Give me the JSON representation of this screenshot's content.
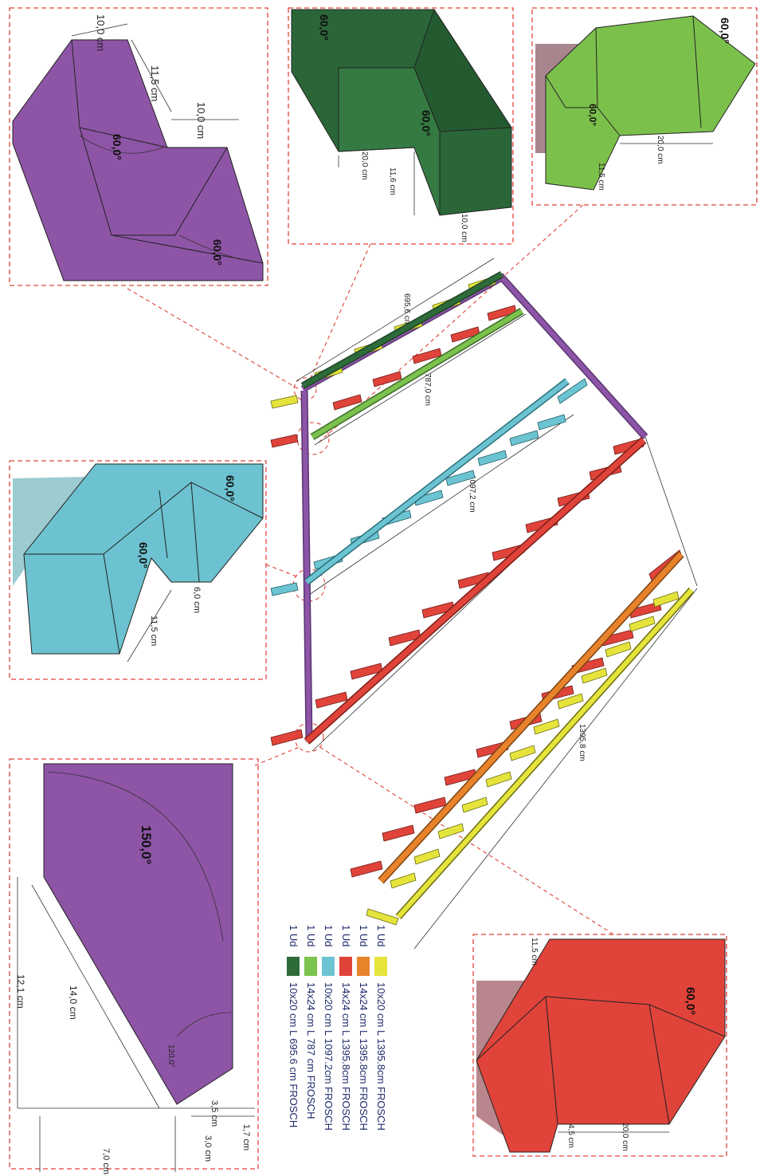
{
  "colors": {
    "dark_green": "#2e6b3a",
    "light_green": "#7cc24e",
    "cyan": "#6cc4d2",
    "red": "#e0433a",
    "orange": "#e8832c",
    "yellow": "#e4e43c",
    "purple": "#8c55a8"
  },
  "detail_top_left": {
    "dims": [
      "10,0 cm",
      "11,5 cm",
      "10,0 cm"
    ],
    "angles": [
      "60,0°",
      "60,0°"
    ]
  },
  "detail_top_mid": {
    "dims": [
      "20,0 cm",
      "11,6 cm",
      "10,0 cm"
    ],
    "angles": [
      "60,0°",
      "60,0°"
    ]
  },
  "detail_top_right": {
    "dims": [
      "20,0 cm",
      "11,5 cm"
    ],
    "angles": [
      "60,0°",
      "60,0°"
    ]
  },
  "detail_mid_left": {
    "dims": [
      "6,0 cm",
      "11,5 cm"
    ],
    "angles": [
      "60,0°",
      "60,0°"
    ]
  },
  "detail_bottom_left": {
    "dims": [
      "12,1 cm",
      "14,0 cm",
      "1,7 cm",
      "3,5 cm",
      "3,0 cm",
      "7,0 cm"
    ],
    "angles": [
      "150,0°",
      "120,0°"
    ]
  },
  "detail_bottom_right": {
    "dims": [
      "11,5 cm",
      "4,5 cm",
      "20,0 cm"
    ],
    "angles": [
      "60,0°"
    ]
  },
  "main_dims": [
    "695,6 cm",
    "787,0 cm",
    "1097,2 cm",
    "1395,8 cm"
  ],
  "legend": [
    {
      "qty": "1 Ud",
      "color": "#e4e43c",
      "text": "10x20 cm L 1395.8cm FROSCH"
    },
    {
      "qty": "1 Ud",
      "color": "#e8832c",
      "text": "14x24 cm L 1395.8cm FROSCH"
    },
    {
      "qty": "1 Ud",
      "color": "#e0433a",
      "text": "14x24 cm L 1395.8cm FROSCH"
    },
    {
      "qty": "1 Ud",
      "color": "#6cc4d2",
      "text": "10x20 cm L 1097.2cm FROSCH"
    },
    {
      "qty": "1 Ud",
      "color": "#7cc24e",
      "text": "14x24 cm L 787 cm FROSCH"
    },
    {
      "qty": "1 Ud",
      "color": "#2e6b3a",
      "text": "10x20 cm L 695.6 cm FROSCH"
    }
  ]
}
